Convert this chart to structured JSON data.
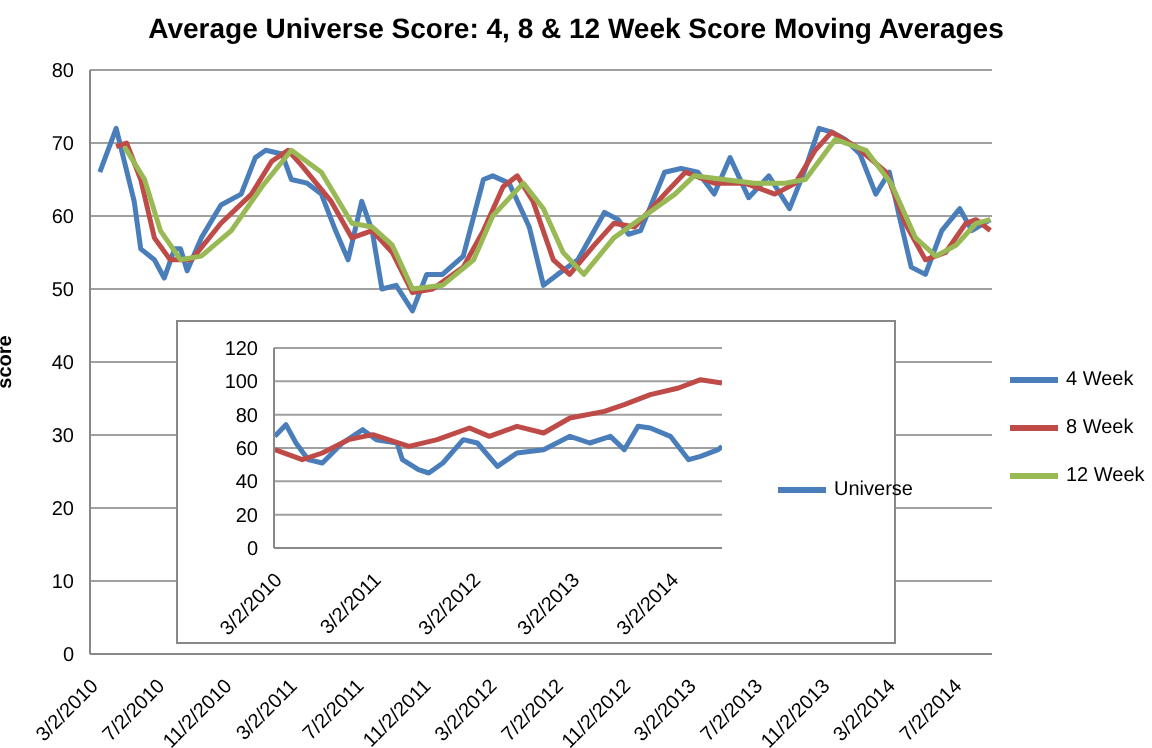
{
  "chart_data": [
    {
      "type": "line",
      "title": "Average Universe Score: 4, 8 & 12 Week Score Moving Averages",
      "ylabel": "score",
      "xlim": [
        "2010-03-02",
        "2014-09-10"
      ],
      "ylim": [
        0,
        80
      ],
      "yticks": [
        0,
        10,
        20,
        30,
        40,
        50,
        60,
        70,
        80
      ],
      "xticks": [
        {
          "value": "2010-03-02",
          "label": "3/2/2010"
        },
        {
          "value": "2010-07-02",
          "label": "7/2/2010"
        },
        {
          "value": "2010-11-02",
          "label": "11/2/2010"
        },
        {
          "value": "2011-03-02",
          "label": "3/2/2011"
        },
        {
          "value": "2011-07-02",
          "label": "7/2/2011"
        },
        {
          "value": "2011-11-02",
          "label": "11/2/2011"
        },
        {
          "value": "2012-03-02",
          "label": "3/2/2012"
        },
        {
          "value": "2012-07-02",
          "label": "7/2/2012"
        },
        {
          "value": "2012-11-02",
          "label": "11/2/2012"
        },
        {
          "value": "2013-03-02",
          "label": "3/2/2013"
        },
        {
          "value": "2013-07-02",
          "label": "7/2/2013"
        },
        {
          "value": "2013-11-02",
          "label": "11/2/2013"
        },
        {
          "value": "2014-03-02",
          "label": "3/2/2014"
        },
        {
          "value": "2014-07-02",
          "label": "7/2/2014"
        }
      ],
      "grid": "y",
      "legend": "right",
      "line_style": "solid",
      "series": [
        {
          "name": "4 Week",
          "color": "#4a7ebb",
          "x": [
            "2010-03-20",
            "2010-04-19",
            "2010-05-22",
            "2010-06-03",
            "2010-06-28",
            "2010-07-16",
            "2010-08-04",
            "2010-08-15",
            "2010-08-27",
            "2010-09-22",
            "2010-10-28",
            "2010-12-04",
            "2010-12-30",
            "2011-01-18",
            "2011-02-17",
            "2011-03-06",
            "2011-04-04",
            "2011-04-30",
            "2011-05-26",
            "2011-06-18",
            "2011-07-13",
            "2011-08-01",
            "2011-08-19",
            "2011-09-14",
            "2011-10-14",
            "2011-11-09",
            "2011-12-08",
            "2012-01-15",
            "2012-02-21",
            "2012-03-09",
            "2012-04-08",
            "2012-05-15",
            "2012-06-10",
            "2012-07-06",
            "2012-08-12",
            "2012-09-30",
            "2012-10-25",
            "2012-11-13",
            "2012-12-05",
            "2013-01-18",
            "2013-02-17",
            "2013-03-20",
            "2013-04-19",
            "2013-05-18",
            "2013-06-21",
            "2013-07-28",
            "2013-09-04",
            "2013-10-03",
            "2013-10-28",
            "2013-11-20",
            "2013-12-15",
            "2014-01-11",
            "2014-02-09",
            "2014-03-06",
            "2014-03-24",
            "2014-04-15",
            "2014-05-11",
            "2014-06-10",
            "2014-07-13",
            "2014-08-04",
            "2014-09-07"
          ],
          "values": [
            66,
            72,
            62,
            55.5,
            54,
            51.5,
            55.5,
            55.5,
            52.5,
            57,
            61.5,
            63,
            68,
            69,
            68.5,
            65,
            64.5,
            63,
            58,
            54,
            62,
            58,
            50,
            50.5,
            47,
            52,
            52,
            54.5,
            65,
            65.5,
            64.5,
            58.5,
            50.5,
            52,
            54,
            60.5,
            59.5,
            57.5,
            58,
            66,
            66.5,
            66,
            63,
            68,
            62.5,
            65.5,
            61,
            66.5,
            72,
            71.5,
            70.5,
            68.5,
            63,
            66,
            60,
            53,
            52,
            58,
            61,
            58,
            59.5
          ]
        },
        {
          "name": "8 Week",
          "color": "#be4b48",
          "x": [
            "2010-04-19",
            "2010-05-08",
            "2010-06-03",
            "2010-06-28",
            "2010-07-27",
            "2010-09-04",
            "2010-10-28",
            "2010-12-23",
            "2011-01-29",
            "2011-02-28",
            "2011-03-24",
            "2011-05-18",
            "2011-06-25",
            "2011-08-01",
            "2011-09-07",
            "2011-10-14",
            "2011-11-20",
            "2012-01-15",
            "2012-02-21",
            "2012-03-28",
            "2012-04-23",
            "2012-05-22",
            "2012-06-28",
            "2012-07-28",
            "2012-09-11",
            "2012-10-17",
            "2012-11-24",
            "2013-01-18",
            "2013-02-25",
            "2013-04-19",
            "2013-06-14",
            "2013-08-08",
            "2013-09-15",
            "2013-10-21",
            "2013-11-20",
            "2014-01-04",
            "2014-02-28",
            "2014-04-04",
            "2014-05-11",
            "2014-06-17",
            "2014-07-24",
            "2014-08-12",
            "2014-09-07"
          ],
          "values": [
            69.5,
            70,
            65,
            57,
            54,
            54,
            59,
            63,
            67.5,
            69,
            67,
            62,
            57,
            58,
            55,
            49.5,
            50,
            53,
            58,
            64,
            65.5,
            62,
            54,
            52,
            56,
            59,
            58.5,
            63,
            66,
            64.5,
            64.5,
            63,
            64.5,
            69,
            71.5,
            69.5,
            66,
            59,
            54,
            55,
            59,
            59.5,
            58
          ]
        },
        {
          "name": "12 Week",
          "color": "#98b954",
          "x": [
            "2010-05-04",
            "2010-06-10",
            "2010-07-09",
            "2010-08-15",
            "2010-09-22",
            "2010-11-16",
            "2011-01-11",
            "2011-03-06",
            "2011-04-30",
            "2011-06-25",
            "2011-08-01",
            "2011-09-07",
            "2011-10-14",
            "2011-12-08",
            "2012-02-03",
            "2012-03-09",
            "2012-05-04",
            "2012-06-10",
            "2012-07-16",
            "2012-08-23",
            "2012-10-17",
            "2012-12-12",
            "2013-02-06",
            "2013-03-13",
            "2013-05-07",
            "2013-07-02",
            "2013-08-27",
            "2013-10-03",
            "2013-11-27",
            "2014-01-22",
            "2014-03-09",
            "2014-04-23",
            "2014-05-30",
            "2014-07-06",
            "2014-08-12",
            "2014-09-07"
          ],
          "values": [
            69.5,
            65,
            58,
            54,
            54.5,
            58,
            64,
            69,
            66,
            59,
            58.5,
            56,
            50,
            50.5,
            54,
            60,
            64.5,
            61,
            55,
            52,
            57,
            60,
            63,
            65.5,
            65,
            64.5,
            64.5,
            65,
            70.5,
            69,
            64.5,
            57,
            54.5,
            56,
            59,
            59.5
          ]
        }
      ]
    },
    {
      "type": "line",
      "xlim": [
        "2010-03-02",
        "2014-09-07"
      ],
      "ylim": [
        0,
        120
      ],
      "yticks": [
        0,
        20,
        40,
        60,
        80,
        100,
        120
      ],
      "xticks": [
        {
          "value": "2010-03-02",
          "label": "3/2/2010"
        },
        {
          "value": "2011-03-02",
          "label": "3/2/2011"
        },
        {
          "value": "2012-03-02",
          "label": "3/2/2012"
        },
        {
          "value": "2013-03-02",
          "label": "3/2/2013"
        },
        {
          "value": "2014-03-02",
          "label": "3/2/2014"
        }
      ],
      "grid": "y",
      "legend": "right",
      "line_style": "solid",
      "series": [
        {
          "name": "Universe",
          "color": "#4a7ebb",
          "x": [
            "2010-03-05",
            "2010-04-15",
            "2010-05-22",
            "2010-07-06",
            "2010-08-27",
            "2010-11-09",
            "2011-01-23",
            "2011-03-14",
            "2011-05-29",
            "2011-06-18",
            "2011-08-16",
            "2011-09-23",
            "2011-11-14",
            "2012-01-28",
            "2012-03-20",
            "2012-06-02",
            "2012-08-13",
            "2012-11-19",
            "2013-02-24",
            "2013-05-08",
            "2013-07-23",
            "2013-09-12",
            "2013-11-02",
            "2013-12-17",
            "2014-03-01",
            "2014-05-07",
            "2014-06-20",
            "2014-08-24",
            "2014-09-07"
          ],
          "values": [
            67,
            74,
            63,
            53,
            51,
            63,
            71,
            65,
            63,
            53,
            47,
            45,
            51,
            65,
            63,
            49,
            57,
            59,
            67,
            63,
            67,
            59,
            73,
            72,
            67,
            53,
            55,
            59,
            61
          ]
        },
        {
          "color": "#be4b48",
          "x": [
            "2010-03-05",
            "2010-06-14",
            "2010-08-27",
            "2010-12-01",
            "2011-03-01",
            "2011-07-12",
            "2011-10-24",
            "2012-02-20",
            "2012-05-03",
            "2012-08-13",
            "2012-11-19",
            "2013-02-24",
            "2013-07-01",
            "2013-09-12",
            "2013-12-17",
            "2014-03-31",
            "2014-06-20",
            "2014-09-07"
          ],
          "values": [
            59,
            53,
            57,
            65,
            68,
            61,
            65,
            72,
            67,
            73,
            69,
            78,
            82,
            86,
            92,
            96,
            101,
            99
          ]
        }
      ]
    }
  ]
}
